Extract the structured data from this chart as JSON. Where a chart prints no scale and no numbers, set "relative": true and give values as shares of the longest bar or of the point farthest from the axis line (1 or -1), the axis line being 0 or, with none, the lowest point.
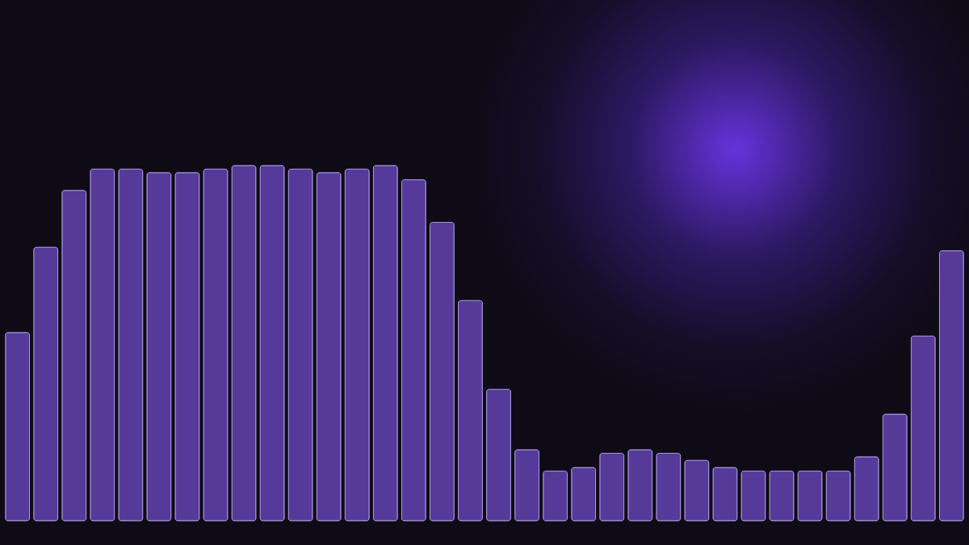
{
  "chart_data": {
    "type": "bar",
    "relative": true,
    "color": "#563a9a",
    "categories": [
      null,
      null,
      null,
      null,
      null,
      null,
      null,
      null,
      null,
      null,
      null,
      null,
      null,
      null,
      null,
      null,
      null,
      null,
      null,
      null,
      null,
      null,
      null,
      null,
      null,
      null,
      null,
      null,
      null,
      null,
      null,
      null,
      null,
      null
    ],
    "values": [
      0.53,
      0.77,
      0.93,
      0.99,
      0.99,
      0.98,
      0.98,
      0.99,
      1,
      1,
      0.99,
      0.98,
      0.99,
      1,
      0.96,
      0.84,
      0.62,
      0.37,
      0.2,
      0.14,
      0.15,
      0.19,
      0.2,
      0.19,
      0.17,
      0.15,
      0.14,
      0.14,
      0.14,
      0.14,
      0.18,
      0.3,
      0.52,
      0.76
    ]
  }
}
